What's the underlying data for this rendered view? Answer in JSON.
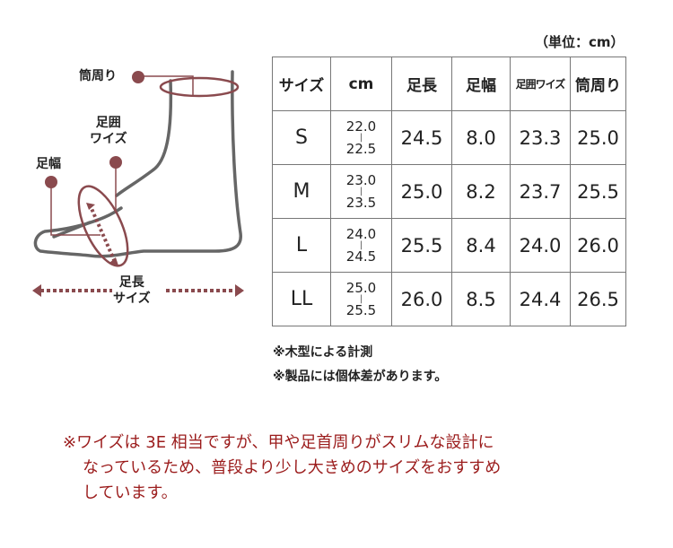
{
  "unit_label": "（単位：cm）",
  "table": {
    "headers": [
      "サイズ",
      "cm",
      "足長",
      "足幅",
      "足囲ワイズ",
      "筒周り"
    ],
    "rows": [
      {
        "size": "S",
        "cm_from": "22.0",
        "cm_to": "22.5",
        "foot_length": "24.5",
        "foot_width": "8.0",
        "foot_girth": "23.3",
        "shaft_circ": "25.0"
      },
      {
        "size": "M",
        "cm_from": "23.0",
        "cm_to": "23.5",
        "foot_length": "25.0",
        "foot_width": "8.2",
        "foot_girth": "23.7",
        "shaft_circ": "25.5"
      },
      {
        "size": "L",
        "cm_from": "24.0",
        "cm_to": "24.5",
        "foot_length": "25.5",
        "foot_width": "8.4",
        "foot_girth": "24.0",
        "shaft_circ": "26.0"
      },
      {
        "size": "LL",
        "cm_from": "25.0",
        "cm_to": "25.5",
        "foot_length": "26.0",
        "foot_width": "8.5",
        "foot_girth": "24.4",
        "shaft_circ": "26.5"
      }
    ]
  },
  "diagram": {
    "shaft_label": "筒周り",
    "girth_label_1": "足囲",
    "girth_label_2": "ワイズ",
    "width_label": "足幅",
    "length_label_1": "足長",
    "length_label_2": "サイズ",
    "accent_color": "#8a4a4e"
  },
  "notes": [
    "※木型による計測",
    "※製品には個体差があります。"
  ],
  "remark": {
    "line1": "※ワイズは 3E 相当ですが、甲や足首周りがスリムな設計に",
    "line2": "なっているため、普段より少し大きめのサイズをおすすめ",
    "line3": "しています。",
    "color": "#9b1c1c"
  }
}
